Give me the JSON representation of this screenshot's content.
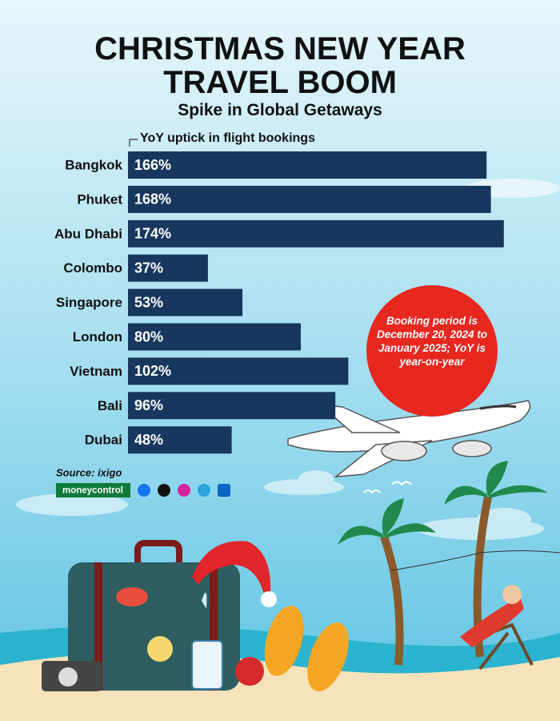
{
  "chart_data": {
    "type": "bar",
    "orientation": "horizontal",
    "title": "CHRISTMAS NEW YEAR TRAVEL BOOM",
    "subtitle": "Spike in Global Getaways",
    "axis_label": "YoY uptick in flight bookings",
    "categories": [
      "Bangkok",
      "Phuket",
      "Abu Dhabi",
      "Colombo",
      "Singapore",
      "London",
      "Vietnam",
      "Bali",
      "Dubai"
    ],
    "values": [
      166,
      168,
      174,
      37,
      53,
      80,
      102,
      96,
      48
    ],
    "value_labels": [
      "166%",
      "168%",
      "174%",
      "37%",
      "53%",
      "80%",
      "102%",
      "96%",
      "48%"
    ],
    "color": "#17375e",
    "annotation": "Booking period is December 20, 2024 to January 2025; YoY is year-on-year",
    "source": "Source: ixigo",
    "brand": "moneycontrol"
  }
}
